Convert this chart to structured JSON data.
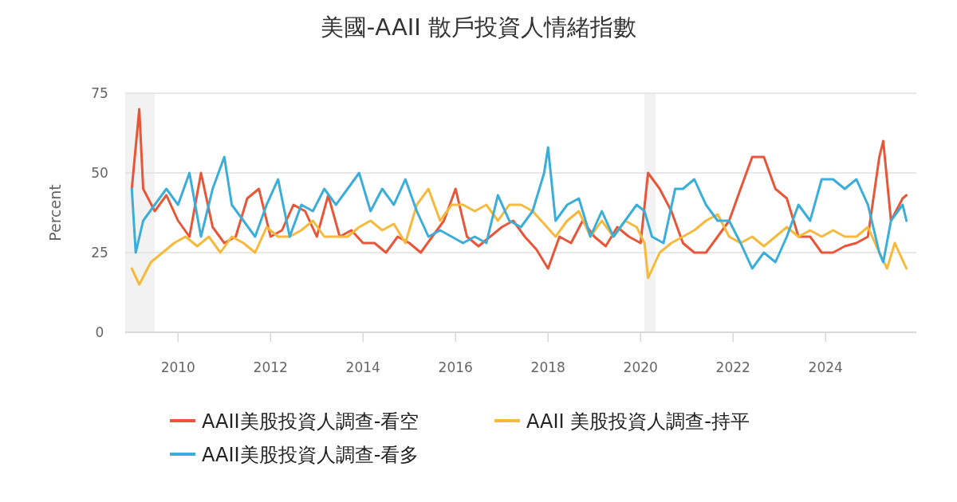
{
  "chart_data": {
    "type": "line",
    "title": "美國-AAII 散戶投資人情緒指數",
    "ylabel": "Percent",
    "xlim": [
      "2008-11-10",
      "2025-12-18"
    ],
    "xticks": [
      "2010",
      "2012",
      "2014",
      "2016",
      "2018",
      "2020",
      "2022",
      "2024"
    ],
    "ylim": [
      0,
      75
    ],
    "yticks": [
      0,
      25,
      50,
      75
    ],
    "grid": "y",
    "legend": "bottom",
    "bands": [
      {
        "axis": "x",
        "from": "2008-11-10",
        "to": "2009-06-30",
        "color": "#f2f2f2"
      },
      {
        "axis": "x",
        "from": "2020-02-01",
        "to": "2020-04-30",
        "color": "#f2f2f2"
      }
    ],
    "series": [
      {
        "name": "AAII美股投資人調查-看空",
        "color": "#e8563a",
        "x": [
          "2009-01",
          "2009-03",
          "2009-04",
          "2009-07",
          "2009-10",
          "2010-01",
          "2010-04",
          "2010-07",
          "2010-10",
          "2011-01",
          "2011-04",
          "2011-07",
          "2011-10",
          "2012-01",
          "2012-04",
          "2012-07",
          "2012-10",
          "2013-01",
          "2013-04",
          "2013-07",
          "2013-10",
          "2014-01",
          "2014-04",
          "2014-07",
          "2014-10",
          "2015-01",
          "2015-04",
          "2015-07",
          "2015-10",
          "2016-01",
          "2016-04",
          "2016-07",
          "2016-10",
          "2017-01",
          "2017-04",
          "2017-07",
          "2017-10",
          "2018-01",
          "2018-04",
          "2018-07",
          "2018-10",
          "2019-01",
          "2019-04",
          "2019-07",
          "2019-10",
          "2020-01",
          "2020-03",
          "2020-06",
          "2020-09",
          "2020-12",
          "2021-03",
          "2021-06",
          "2021-09",
          "2021-12",
          "2022-03",
          "2022-06",
          "2022-09",
          "2022-12",
          "2023-03",
          "2023-06",
          "2023-09",
          "2023-12",
          "2024-03",
          "2024-06",
          "2024-09",
          "2024-12",
          "2025-03",
          "2025-04",
          "2025-06",
          "2025-09",
          "2025-10"
        ],
        "values": [
          45,
          70,
          45,
          38,
          43,
          35,
          30,
          50,
          33,
          28,
          30,
          42,
          45,
          30,
          32,
          40,
          38,
          30,
          43,
          30,
          32,
          28,
          28,
          25,
          30,
          28,
          25,
          30,
          35,
          45,
          30,
          27,
          30,
          33,
          35,
          30,
          26,
          20,
          30,
          28,
          35,
          30,
          27,
          33,
          30,
          28,
          50,
          45,
          38,
          28,
          25,
          25,
          30,
          35,
          45,
          55,
          55,
          45,
          42,
          30,
          30,
          25,
          25,
          27,
          28,
          30,
          55,
          60,
          35,
          42,
          43
        ]
      },
      {
        "name": "AAII 美股投資人調查-持平",
        "color": "#f5b93c",
        "x": [
          "2009-01",
          "2009-03",
          "2009-06",
          "2009-09",
          "2009-12",
          "2010-03",
          "2010-06",
          "2010-09",
          "2010-12",
          "2011-03",
          "2011-06",
          "2011-09",
          "2011-12",
          "2012-03",
          "2012-06",
          "2012-09",
          "2012-12",
          "2013-03",
          "2013-06",
          "2013-09",
          "2013-12",
          "2014-03",
          "2014-06",
          "2014-09",
          "2014-12",
          "2015-03",
          "2015-06",
          "2015-09",
          "2015-12",
          "2016-03",
          "2016-06",
          "2016-09",
          "2016-12",
          "2017-03",
          "2017-06",
          "2017-09",
          "2017-12",
          "2018-03",
          "2018-06",
          "2018-09",
          "2018-12",
          "2019-03",
          "2019-06",
          "2019-09",
          "2019-12",
          "2020-02",
          "2020-03",
          "2020-06",
          "2020-09",
          "2020-12",
          "2021-03",
          "2021-06",
          "2021-09",
          "2021-12",
          "2022-03",
          "2022-06",
          "2022-09",
          "2022-12",
          "2023-03",
          "2023-06",
          "2023-09",
          "2023-12",
          "2024-03",
          "2024-06",
          "2024-09",
          "2024-12",
          "2025-03",
          "2025-05",
          "2025-07",
          "2025-10"
        ],
        "values": [
          20,
          15,
          22,
          25,
          28,
          30,
          27,
          30,
          25,
          30,
          28,
          25,
          33,
          30,
          30,
          32,
          35,
          30,
          30,
          30,
          33,
          35,
          32,
          34,
          28,
          40,
          45,
          35,
          40,
          40,
          38,
          40,
          35,
          40,
          40,
          38,
          34,
          30,
          35,
          38,
          30,
          35,
          30,
          35,
          33,
          28,
          17,
          25,
          28,
          30,
          32,
          35,
          37,
          30,
          28,
          30,
          27,
          30,
          33,
          30,
          32,
          30,
          32,
          30,
          30,
          33,
          25,
          20,
          28,
          20
        ]
      },
      {
        "name": "AAII美股投資人調查-看多",
        "color": "#3aaed8",
        "x": [
          "2009-01",
          "2009-02",
          "2009-04",
          "2009-07",
          "2009-10",
          "2010-01",
          "2010-04",
          "2010-07",
          "2010-10",
          "2011-01",
          "2011-03",
          "2011-06",
          "2011-09",
          "2011-12",
          "2012-03",
          "2012-06",
          "2012-09",
          "2012-12",
          "2013-03",
          "2013-06",
          "2013-09",
          "2013-12",
          "2014-03",
          "2014-06",
          "2014-09",
          "2014-12",
          "2015-03",
          "2015-06",
          "2015-09",
          "2015-12",
          "2016-03",
          "2016-06",
          "2016-09",
          "2016-12",
          "2017-03",
          "2017-06",
          "2017-09",
          "2017-12",
          "2018-01",
          "2018-03",
          "2018-06",
          "2018-09",
          "2018-12",
          "2019-03",
          "2019-06",
          "2019-09",
          "2019-12",
          "2020-02",
          "2020-04",
          "2020-07",
          "2020-10",
          "2020-12",
          "2021-03",
          "2021-06",
          "2021-09",
          "2021-12",
          "2022-03",
          "2022-06",
          "2022-09",
          "2022-12",
          "2023-03",
          "2023-06",
          "2023-09",
          "2023-12",
          "2024-03",
          "2024-06",
          "2024-09",
          "2024-12",
          "2025-03",
          "2025-04",
          "2025-06",
          "2025-09",
          "2025-10"
        ],
        "values": [
          45,
          25,
          35,
          40,
          45,
          40,
          50,
          30,
          45,
          55,
          40,
          35,
          30,
          40,
          48,
          30,
          40,
          38,
          45,
          40,
          45,
          50,
          38,
          45,
          40,
          48,
          38,
          30,
          32,
          30,
          28,
          30,
          28,
          43,
          35,
          33,
          38,
          50,
          58,
          35,
          40,
          42,
          30,
          38,
          30,
          35,
          40,
          38,
          30,
          28,
          45,
          45,
          48,
          40,
          35,
          35,
          28,
          20,
          25,
          22,
          30,
          40,
          35,
          48,
          48,
          45,
          48,
          40,
          25,
          22,
          35,
          40,
          35
        ]
      }
    ]
  }
}
